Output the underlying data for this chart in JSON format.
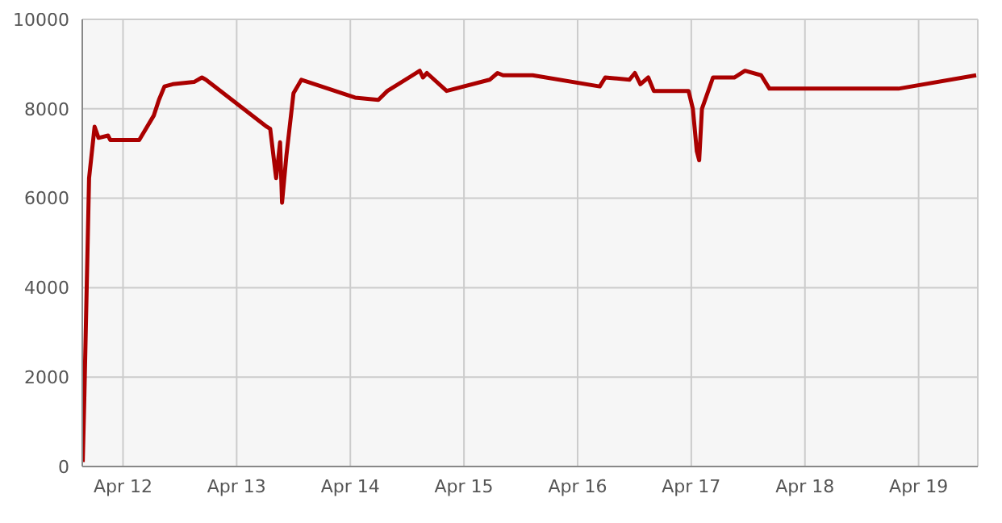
{
  "chart_data": {
    "type": "line",
    "x": [
      "--04-11T15:30",
      "--04-11T15:50",
      "--04-11T16:50",
      "--04-11T18:00",
      "--04-11T18:50",
      "--04-11T20:50",
      "--04-11T21:20",
      "--04-12T03:25",
      "--04-12T06:30",
      "--04-12T07:35",
      "--04-12T08:45",
      "--04-12T10:30",
      "--04-12T15:00",
      "--04-12T16:40",
      "--04-12T17:30",
      "--04-13T06:20",
      "--04-13T07:05",
      "--04-13T08:20",
      "--04-13T09:10",
      "--04-13T09:35",
      "--04-13T10:30",
      "--04-13T12:00",
      "--04-13T13:40",
      "--04-13T16:30",
      "--04-14T01:00",
      "--04-14T05:55",
      "--04-14T07:50",
      "--04-14T14:40",
      "--04-14T15:20",
      "--04-14T16:10",
      "--04-14T20:20",
      "--04-15T05:25",
      "--04-15T07:05",
      "--04-15T08:15",
      "--04-15T14:30",
      "--04-16T04:40",
      "--04-16T05:50",
      "--04-16T10:55",
      "--04-16T12:05",
      "--04-16T13:15",
      "--04-16T14:55",
      "--04-16T16:05",
      "--04-16T23:25",
      "--04-17T00:20",
      "--04-17T01:10",
      "--04-17T01:40",
      "--04-17T02:15",
      "--04-17T04:35",
      "--04-17T09:05",
      "--04-17T11:20",
      "--04-17T14:45",
      "--04-17T16:30",
      "--04-17T19:50",
      "--04-18T19:45",
      "--04-19T12:10"
    ],
    "series": [
      {
        "color": "#aa0000",
        "values": [
          100,
          1550,
          6450,
          7600,
          7350,
          7400,
          7300,
          7300,
          7850,
          8200,
          8500,
          8550,
          8600,
          8700,
          8650,
          7600,
          7550,
          6450,
          7250,
          5900,
          6950,
          8350,
          8650,
          8550,
          8250,
          8200,
          8400,
          8850,
          8700,
          8800,
          8400,
          8650,
          8800,
          8750,
          8750,
          8500,
          8700,
          8650,
          8800,
          8550,
          8700,
          8400,
          8400,
          8000,
          7050,
          6850,
          8000,
          8700,
          8700,
          8850,
          8750,
          8450,
          8450,
          8450,
          8750
        ]
      }
    ],
    "xlim": [
      "--04-11T15:24",
      "--04-19T12:30"
    ],
    "xticks": [
      {
        "value": "--04-12",
        "label": "Apr 12"
      },
      {
        "value": "--04-13",
        "label": "Apr 13"
      },
      {
        "value": "--04-14",
        "label": "Apr 14"
      },
      {
        "value": "--04-15",
        "label": "Apr 15"
      },
      {
        "value": "--04-16",
        "label": "Apr 16"
      },
      {
        "value": "--04-17",
        "label": "Apr 17"
      },
      {
        "value": "--04-18",
        "label": "Apr 18"
      },
      {
        "value": "--04-19",
        "label": "Apr 19"
      }
    ],
    "ylim": [
      0,
      10000
    ],
    "yticks": [
      0,
      2000,
      4000,
      6000,
      8000,
      10000
    ],
    "grid": true,
    "marker": "none",
    "line_style": "solid",
    "legend": false
  }
}
